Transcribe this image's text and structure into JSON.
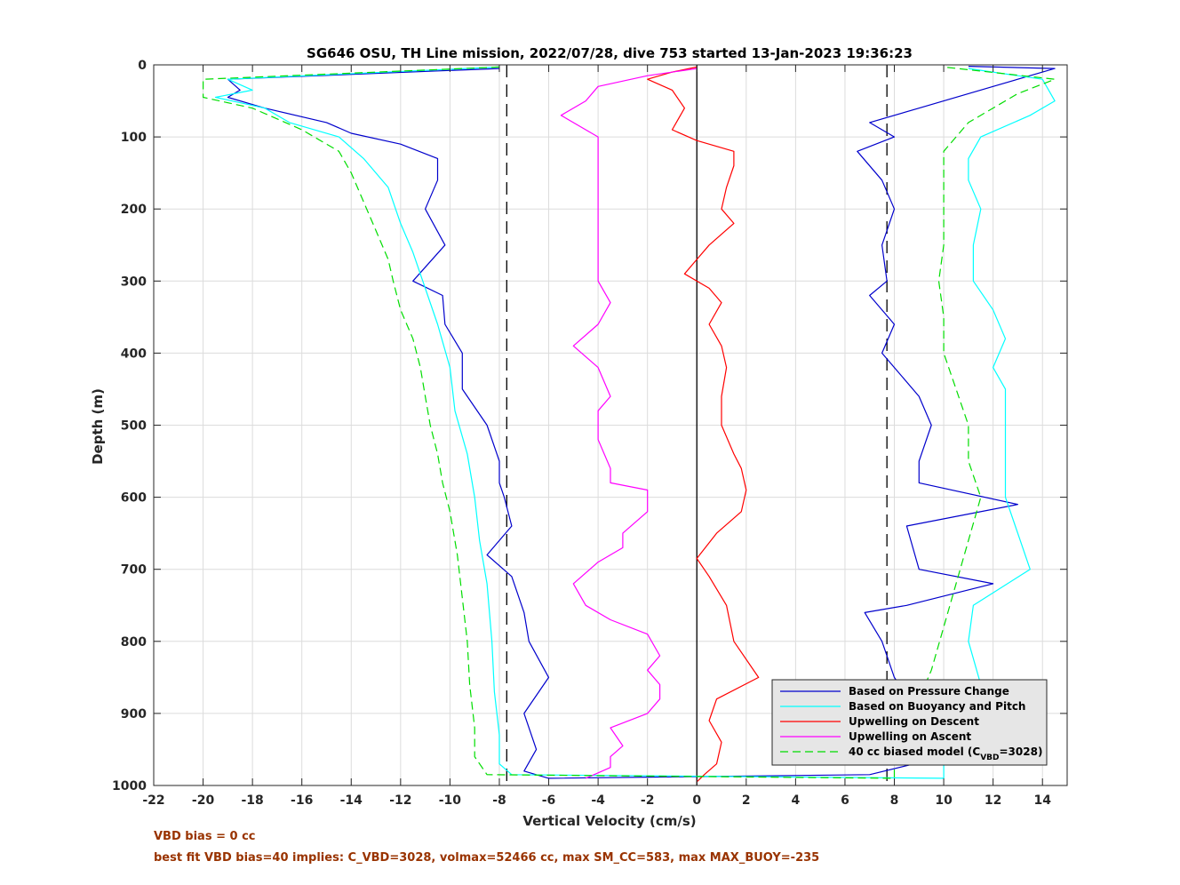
{
  "chart_data": {
    "type": "line",
    "title": "SG646 OSU, TH Line mission, 2022/07/28, dive 753 started 13-Jan-2023 19:36:23",
    "xlabel": "Vertical Velocity (cm/s)",
    "ylabel": "Depth (m)",
    "xlim": [
      -22,
      15
    ],
    "ylim": [
      0,
      1000
    ],
    "y_reversed": true,
    "grid": true,
    "legend_position": "bottom-right",
    "xticks": [
      "-22",
      "-20",
      "-18",
      "-16",
      "-14",
      "-12",
      "-10",
      "-8",
      "-6",
      "-4",
      "-2",
      "0",
      "2",
      "4",
      "6",
      "8",
      "10",
      "12",
      "14"
    ],
    "yticks": [
      "0",
      "100",
      "200",
      "300",
      "400",
      "500",
      "600",
      "700",
      "800",
      "900",
      "1000"
    ],
    "reference_lines": [
      {
        "x": 0,
        "style": "solid",
        "color": "#000000"
      },
      {
        "x": -7.7,
        "style": "dashed",
        "color": "#000000"
      },
      {
        "x": 7.7,
        "style": "dashed",
        "color": "#000000"
      }
    ],
    "series": [
      {
        "name": "Based on Pressure Change",
        "color": "#0000CC",
        "style": "solid",
        "points": [
          [
            -8,
            5
          ],
          [
            -19,
            20
          ],
          [
            -18.5,
            35
          ],
          [
            -19,
            45
          ],
          [
            -17.5,
            60
          ],
          [
            -15,
            80
          ],
          [
            -14,
            95
          ],
          [
            -12,
            110
          ],
          [
            -10.5,
            130
          ],
          [
            -10.5,
            160
          ],
          [
            -11,
            200
          ],
          [
            -10.2,
            250
          ],
          [
            -11.5,
            300
          ],
          [
            -10.3,
            320
          ],
          [
            -10.2,
            360
          ],
          [
            -9.5,
            400
          ],
          [
            -9.5,
            450
          ],
          [
            -8.5,
            500
          ],
          [
            -8,
            550
          ],
          [
            -8,
            580
          ],
          [
            -7.8,
            600
          ],
          [
            -7.5,
            640
          ],
          [
            -8.5,
            680
          ],
          [
            -7.5,
            710
          ],
          [
            -7,
            760
          ],
          [
            -6.8,
            800
          ],
          [
            -6,
            850
          ],
          [
            -7,
            900
          ],
          [
            -6.5,
            950
          ],
          [
            -7,
            980
          ],
          [
            -6,
            990
          ],
          [
            7,
            985
          ],
          [
            10,
            960
          ],
          [
            9,
            950
          ],
          [
            8.5,
            930
          ],
          [
            8,
            910
          ],
          [
            9,
            900
          ],
          [
            8,
            850
          ],
          [
            7.5,
            800
          ],
          [
            6.8,
            760
          ],
          [
            8.5,
            750
          ],
          [
            12,
            720
          ],
          [
            9,
            700
          ],
          [
            8.5,
            640
          ],
          [
            13,
            610
          ],
          [
            9,
            580
          ],
          [
            9,
            550
          ],
          [
            9.5,
            500
          ],
          [
            9,
            460
          ],
          [
            8,
            420
          ],
          [
            7.5,
            400
          ],
          [
            8,
            360
          ],
          [
            7,
            320
          ],
          [
            7.7,
            300
          ],
          [
            7.5,
            250
          ],
          [
            8,
            200
          ],
          [
            7.5,
            160
          ],
          [
            6.5,
            120
          ],
          [
            8,
            100
          ],
          [
            7,
            80
          ],
          [
            9,
            60
          ],
          [
            12,
            30
          ],
          [
            14.5,
            5
          ],
          [
            11,
            2
          ]
        ]
      },
      {
        "name": "Based on Buoyancy and Pitch",
        "color": "#00FFFF",
        "style": "solid",
        "points": [
          [
            -8,
            3
          ],
          [
            -19,
            20
          ],
          [
            -18,
            35
          ],
          [
            -19.5,
            45
          ],
          [
            -17.5,
            60
          ],
          [
            -16.5,
            80
          ],
          [
            -14.5,
            100
          ],
          [
            -13.5,
            130
          ],
          [
            -12.5,
            170
          ],
          [
            -12,
            220
          ],
          [
            -11.5,
            260
          ],
          [
            -11,
            310
          ],
          [
            -10.5,
            360
          ],
          [
            -10,
            420
          ],
          [
            -9.8,
            480
          ],
          [
            -9.3,
            540
          ],
          [
            -9,
            600
          ],
          [
            -8.8,
            660
          ],
          [
            -8.5,
            720
          ],
          [
            -8.3,
            800
          ],
          [
            -8.2,
            870
          ],
          [
            -8,
            930
          ],
          [
            -8,
            970
          ],
          [
            -7.5,
            985
          ],
          [
            10,
            990
          ],
          [
            10,
            950
          ],
          [
            11,
            900
          ],
          [
            11.5,
            860
          ],
          [
            11,
            800
          ],
          [
            11.2,
            750
          ],
          [
            13.5,
            700
          ],
          [
            13,
            650
          ],
          [
            12.5,
            600
          ],
          [
            12.5,
            550
          ],
          [
            12.5,
            500
          ],
          [
            12.5,
            450
          ],
          [
            12,
            420
          ],
          [
            12.5,
            380
          ],
          [
            12,
            340
          ],
          [
            11.2,
            300
          ],
          [
            11.2,
            250
          ],
          [
            11.5,
            200
          ],
          [
            11,
            160
          ],
          [
            11,
            130
          ],
          [
            11.5,
            100
          ],
          [
            13.5,
            70
          ],
          [
            14.5,
            50
          ],
          [
            14,
            20
          ],
          [
            11,
            5
          ]
        ]
      },
      {
        "name": "Upwelling on Descent",
        "color": "#FF0000",
        "style": "solid",
        "points": [
          [
            0,
            3
          ],
          [
            -1,
            10
          ],
          [
            -2,
            20
          ],
          [
            -1,
            35
          ],
          [
            -0.5,
            60
          ],
          [
            -1,
            90
          ],
          [
            0,
            105
          ],
          [
            1.5,
            120
          ],
          [
            1.5,
            140
          ],
          [
            1.2,
            170
          ],
          [
            1,
            200
          ],
          [
            1.5,
            220
          ],
          [
            0.5,
            250
          ],
          [
            0,
            270
          ],
          [
            -0.5,
            290
          ],
          [
            0.5,
            310
          ],
          [
            1,
            330
          ],
          [
            0.5,
            360
          ],
          [
            1,
            390
          ],
          [
            1.2,
            420
          ],
          [
            1,
            460
          ],
          [
            1,
            500
          ],
          [
            1.5,
            540
          ],
          [
            1.8,
            560
          ],
          [
            2,
            590
          ],
          [
            1.8,
            620
          ],
          [
            0.8,
            650
          ],
          [
            0,
            685
          ],
          [
            0.5,
            710
          ],
          [
            1.2,
            750
          ],
          [
            1.5,
            800
          ],
          [
            2.5,
            850
          ],
          [
            0.8,
            880
          ],
          [
            0.5,
            910
          ],
          [
            1,
            940
          ],
          [
            0.8,
            970
          ],
          [
            0.3,
            985
          ],
          [
            0,
            995
          ]
        ]
      },
      {
        "name": "Upwelling on Ascent",
        "color": "#FF00FF",
        "style": "solid",
        "points": [
          [
            -4.5,
            990
          ],
          [
            -3.5,
            975
          ],
          [
            -3.5,
            960
          ],
          [
            -3,
            945
          ],
          [
            -3.5,
            920
          ],
          [
            -2,
            900
          ],
          [
            -1.5,
            880
          ],
          [
            -1.5,
            860
          ],
          [
            -2,
            840
          ],
          [
            -1.5,
            820
          ],
          [
            -2,
            790
          ],
          [
            -3.5,
            770
          ],
          [
            -4.5,
            750
          ],
          [
            -5,
            720
          ],
          [
            -4,
            690
          ],
          [
            -3,
            670
          ],
          [
            -3,
            650
          ],
          [
            -2,
            620
          ],
          [
            -2,
            590
          ],
          [
            -3.5,
            580
          ],
          [
            -3.5,
            560
          ],
          [
            -4,
            520
          ],
          [
            -4,
            480
          ],
          [
            -3.5,
            460
          ],
          [
            -4,
            420
          ],
          [
            -5,
            390
          ],
          [
            -4,
            360
          ],
          [
            -3.5,
            330
          ],
          [
            -4,
            300
          ],
          [
            -4,
            260
          ],
          [
            -4,
            220
          ],
          [
            -4,
            180
          ],
          [
            -4,
            140
          ],
          [
            -4,
            100
          ],
          [
            -5.5,
            70
          ],
          [
            -4.5,
            50
          ],
          [
            -4,
            30
          ],
          [
            -2,
            15
          ],
          [
            0,
            5
          ]
        ]
      },
      {
        "name": "40 cc biased model (C_VBD=3028)",
        "color": "#00DD00",
        "style": "dashed",
        "points": [
          [
            -8,
            3
          ],
          [
            -20,
            20
          ],
          [
            -20,
            45
          ],
          [
            -18,
            60
          ],
          [
            -16,
            90
          ],
          [
            -14.5,
            120
          ],
          [
            -14,
            150
          ],
          [
            -13.5,
            190
          ],
          [
            -13,
            230
          ],
          [
            -12.5,
            270
          ],
          [
            -12.3,
            300
          ],
          [
            -12,
            340
          ],
          [
            -11.5,
            380
          ],
          [
            -11.2,
            420
          ],
          [
            -11,
            460
          ],
          [
            -10.8,
            500
          ],
          [
            -10.5,
            540
          ],
          [
            -10.3,
            580
          ],
          [
            -10,
            620
          ],
          [
            -9.7,
            680
          ],
          [
            -9.5,
            740
          ],
          [
            -9.3,
            800
          ],
          [
            -9.2,
            860
          ],
          [
            -9,
            920
          ],
          [
            -9,
            960
          ],
          [
            -8.5,
            985
          ],
          [
            8,
            990
          ],
          [
            8,
            950
          ],
          [
            8.5,
            920
          ],
          [
            9,
            880
          ],
          [
            9.5,
            840
          ],
          [
            10,
            780
          ],
          [
            10.5,
            720
          ],
          [
            11,
            660
          ],
          [
            11.5,
            600
          ],
          [
            11,
            550
          ],
          [
            11,
            500
          ],
          [
            10.5,
            450
          ],
          [
            10,
            400
          ],
          [
            10,
            350
          ],
          [
            9.8,
            300
          ],
          [
            10,
            250
          ],
          [
            10,
            200
          ],
          [
            10,
            160
          ],
          [
            10,
            120
          ],
          [
            11,
            80
          ],
          [
            13,
            40
          ],
          [
            14.5,
            20
          ],
          [
            10,
            3
          ]
        ]
      }
    ],
    "legend_entries": [
      {
        "label": "Based on Pressure Change",
        "sub": "",
        "tail": ""
      },
      {
        "label": "Based on Buoyancy and Pitch",
        "sub": "",
        "tail": ""
      },
      {
        "label": "Upwelling on Descent",
        "sub": "",
        "tail": ""
      },
      {
        "label": "Upwelling on Ascent",
        "sub": "",
        "tail": ""
      },
      {
        "label": "40 cc biased model (C",
        "sub": "VBD",
        "tail": "=3028)"
      }
    ]
  },
  "notes": {
    "line1": "VBD bias = 0 cc",
    "line2": "best fit VBD bias=40 implies: C_VBD=3028, volmax=52466 cc, max SM_CC=583, max MAX_BUOY=-235"
  }
}
